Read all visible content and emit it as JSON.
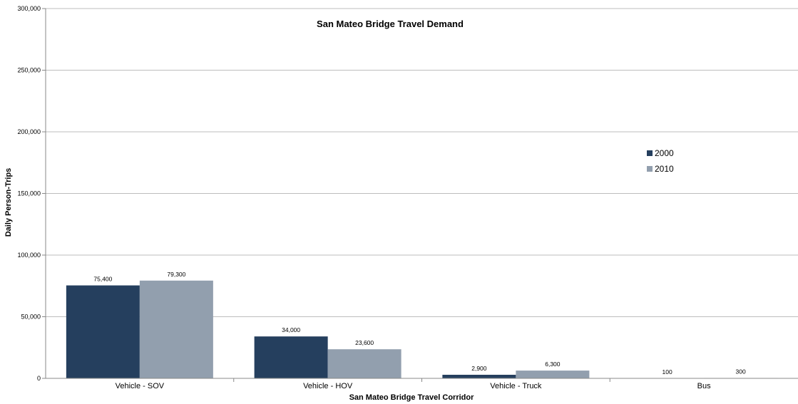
{
  "chart_data": {
    "type": "bar",
    "title": "San Mateo Bridge Travel Demand",
    "xlabel": "San Mateo Bridge Travel Corridor",
    "ylabel": "Daily Person-Trips",
    "categories": [
      "Vehicle - SOV",
      "Vehicle - HOV",
      "Vehicle - Truck",
      "Bus"
    ],
    "series": [
      {
        "name": "2000",
        "values": [
          75400,
          34000,
          2900,
          100
        ],
        "labels": [
          "75,400",
          "34,000",
          "2,900",
          "100"
        ],
        "color": "#253f5e"
      },
      {
        "name": "2010",
        "values": [
          79300,
          23600,
          6300,
          300
        ],
        "labels": [
          "79,300",
          "23,600",
          "6,300",
          "300"
        ],
        "color": "#929fae"
      }
    ],
    "ylim": [
      0,
      300000
    ],
    "yticks": [
      0,
      50000,
      100000,
      150000,
      200000,
      250000,
      300000
    ],
    "ytick_labels": [
      "0",
      "50,000",
      "100,000",
      "150,000",
      "200,000",
      "250,000",
      "300,000"
    ],
    "grid": true,
    "legend_position": "right"
  }
}
